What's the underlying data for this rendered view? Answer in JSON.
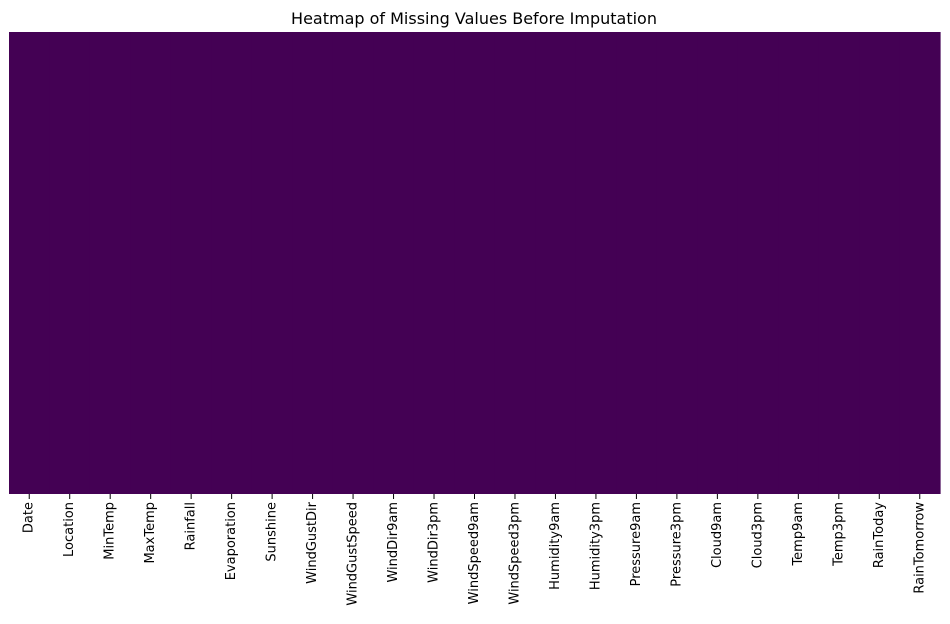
{
  "chart_data": {
    "type": "heatmap",
    "title": "Heatmap of Missing Values Before Imputation",
    "xlabel": "",
    "ylabel": "",
    "columns": [
      "Date",
      "Location",
      "MinTemp",
      "MaxTemp",
      "Rainfall",
      "Evaporation",
      "Sunshine",
      "WindGustDir",
      "WindGustSpeed",
      "WindDir9am",
      "WindDir3pm",
      "WindSpeed9am",
      "WindSpeed3pm",
      "Humidity9am",
      "Humidity3pm",
      "Pressure9am",
      "Pressure3pm",
      "Cloud9am",
      "Cloud3pm",
      "Temp9am",
      "Temp3pm",
      "RainToday",
      "RainTomorrow"
    ],
    "missing": [
      0,
      0,
      0,
      0,
      0,
      0,
      0,
      0,
      0,
      0,
      0,
      0,
      0,
      0,
      0,
      0,
      0,
      0,
      0,
      0,
      0,
      0,
      0
    ],
    "colorbar": false,
    "grid": false,
    "y_ticks_visible": false,
    "colors": {
      "not_missing": "#440154",
      "missing": "#fde725"
    }
  }
}
